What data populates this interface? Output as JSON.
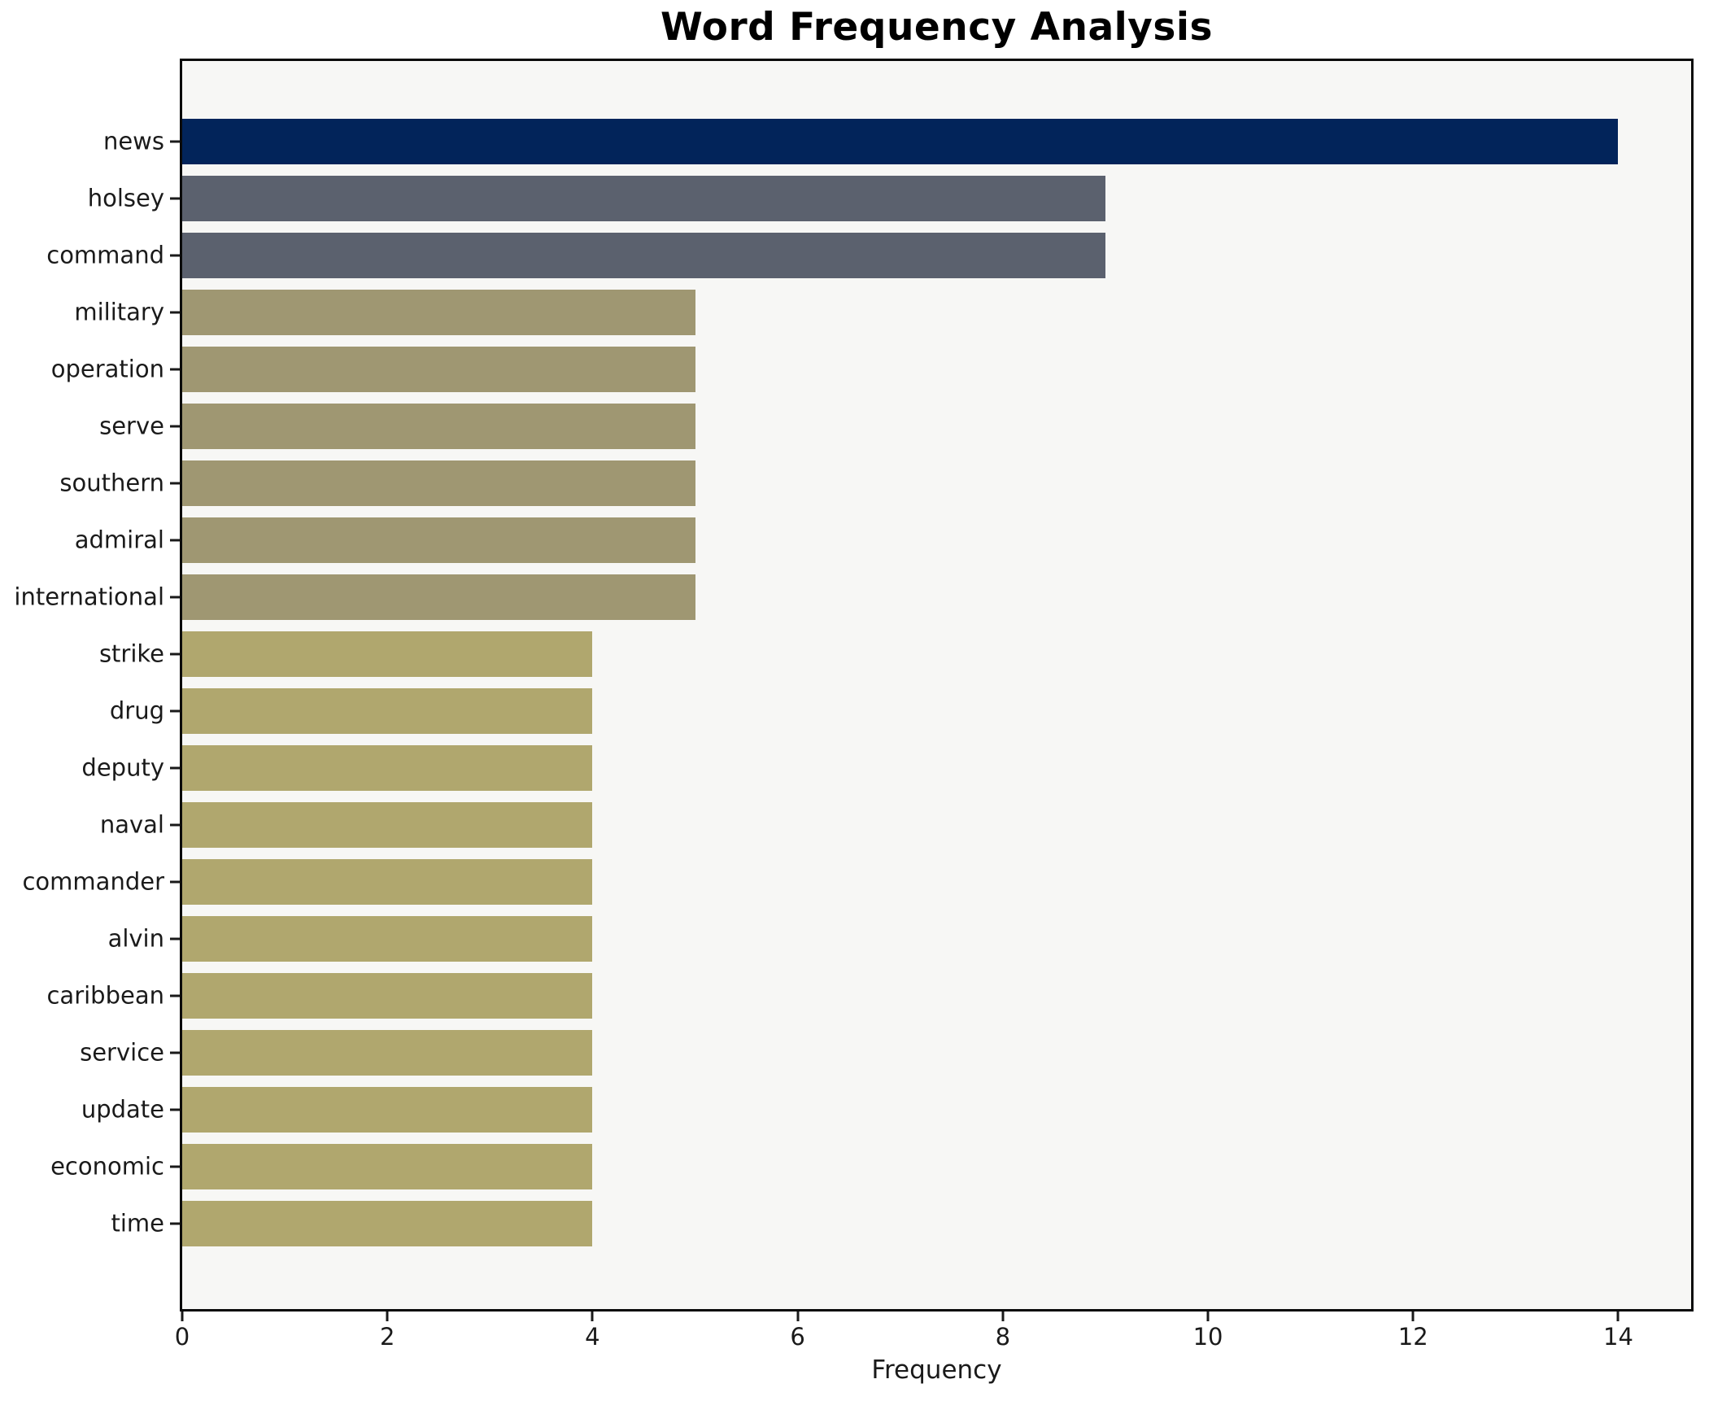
{
  "chart_data": {
    "type": "bar",
    "orientation": "horizontal",
    "title": "Word Frequency Analysis",
    "xlabel": "Frequency",
    "ylabel": "",
    "categories": [
      "news",
      "holsey",
      "command",
      "military",
      "operation",
      "serve",
      "southern",
      "admiral",
      "international",
      "strike",
      "drug",
      "deputy",
      "naval",
      "commander",
      "alvin",
      "caribbean",
      "service",
      "update",
      "economic",
      "time"
    ],
    "values": [
      14,
      9,
      9,
      5,
      5,
      5,
      5,
      5,
      5,
      4,
      4,
      4,
      4,
      4,
      4,
      4,
      4,
      4,
      4,
      4
    ],
    "bar_colors": [
      "#02245a",
      "#5b616e",
      "#5b616e",
      "#9f9772",
      "#9f9772",
      "#9f9772",
      "#9f9772",
      "#9f9772",
      "#9f9772",
      "#b0a76e",
      "#b0a76e",
      "#b0a76e",
      "#b0a76e",
      "#b0a76e",
      "#b0a76e",
      "#b0a76e",
      "#b0a76e",
      "#b0a76e",
      "#b0a76e",
      "#b0a76e"
    ],
    "xlim": [
      0,
      14.71
    ],
    "xticks": [
      0,
      2,
      4,
      6,
      8,
      10,
      12,
      14
    ],
    "grid": false,
    "legend": false,
    "colors": {
      "plot_bg": "#f7f7f5",
      "fig_bg": "#ffffff",
      "axis": "#0a0a0a",
      "text": "#1a1a1a"
    }
  }
}
